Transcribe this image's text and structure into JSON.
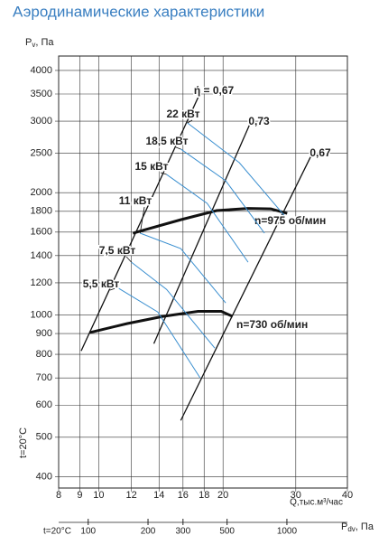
{
  "chart_data": {
    "type": "line",
    "title": "Аэродинамические характеристики",
    "y_label": {
      "main": "P",
      "sub": "v",
      "rest": ", Па"
    },
    "y_note": "t=20°C",
    "x_label": "Q,тыс.м³/час",
    "log_x": true,
    "log_y": true,
    "grid": true,
    "xlim": [
      8,
      40
    ],
    "xticks": [
      8,
      9,
      10,
      12,
      14,
      16,
      18,
      20,
      30,
      40
    ],
    "ylim": [
      375,
      4340
    ],
    "yticks": [
      400,
      500,
      600,
      700,
      800,
      900,
      1000,
      1200,
      1400,
      1600,
      1800,
      2000,
      2500,
      3000,
      3500,
      4000
    ],
    "pdv_axis": {
      "note": "t=20°C",
      "label": {
        "main": "P",
        "sub": "dv",
        "rest": ", Па"
      },
      "lim": [
        71,
        2016
      ],
      "ticks": [
        100,
        200,
        300,
        500,
        1000
      ]
    },
    "series": [
      {
        "name": "ή = 0,67",
        "color": "#111111",
        "x": [
          9.07,
          17.4
        ],
        "values": [
          816,
          3430
        ]
      },
      {
        "name": "0,73",
        "color": "#111111",
        "x": [
          13.6,
          23.6
        ],
        "values": [
          850,
          3064
        ]
      },
      {
        "name": "0,67",
        "color": "#111111",
        "x": [
          15.8,
          32.7
        ],
        "values": [
          550,
          2470
        ]
      },
      {
        "name": "n=975 об/мин",
        "color": "#111111",
        "x": [
          12.1,
          15.8,
          19.3,
          23.0,
          26.1,
          28.6
        ],
        "values": [
          1590,
          1716,
          1807,
          1830,
          1825,
          1779
        ]
      },
      {
        "name": "n=730 об/мин",
        "color": "#111111",
        "x": [
          9.5,
          11.7,
          14.3,
          17.4,
          19.8,
          21.1
        ],
        "values": [
          905,
          952,
          992,
          1021,
          1021,
          992
        ]
      },
      {
        "name": "22 кВт",
        "color": "#3a8fd0",
        "x": [
          16.4,
          21.9,
          28.1
        ],
        "values": [
          2971,
          2371,
          1761
        ]
      },
      {
        "name": "18,5 кВт",
        "color": "#3a8fd0",
        "x": [
          15.8,
          20.3,
          25.2
        ],
        "values": [
          2561,
          2140,
          1590
        ]
      },
      {
        "name": "15 кВт",
        "color": "#3a8fd0",
        "x": [
          14.6,
          18.3,
          23.0
        ],
        "values": [
          2218,
          1883,
          1349
        ]
      },
      {
        "name": "11 кВт",
        "color": "#3a8fd0",
        "x": [
          12.6,
          15.8,
          20.3
        ],
        "values": [
          1590,
          1457,
          1071
        ]
      },
      {
        "name": "7,5 кВт",
        "color": "#3a8fd0",
        "x": [
          12.0,
          14.6,
          19.1
        ],
        "values": [
          1349,
          1156,
          829
        ]
      },
      {
        "name": "5,5 кВт",
        "color": "#3a8fd0",
        "x": [
          11.1,
          13.9,
          17.6
        ],
        "values": [
          1168,
          1017,
          700
        ]
      }
    ]
  }
}
